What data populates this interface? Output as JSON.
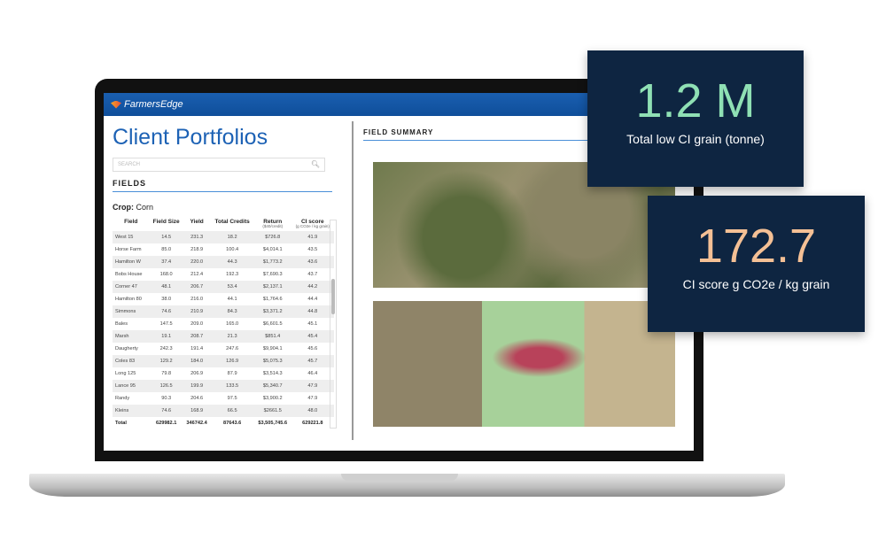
{
  "app": {
    "brand": "FarmersEdge",
    "title": "Client Portfolios",
    "search_placeholder": "SEARCH"
  },
  "fields": {
    "heading": "FIELDS",
    "crop_label": "Crop:",
    "crop_value": "Corn",
    "columns": [
      {
        "label": "Field",
        "sub": ""
      },
      {
        "label": "Field Size",
        "sub": ""
      },
      {
        "label": "Yield",
        "sub": ""
      },
      {
        "label": "Total Credits",
        "sub": ""
      },
      {
        "label": "Return",
        "sub": "($40/credit)"
      },
      {
        "label": "CI score",
        "sub": "(g CO2e / kg grain)"
      }
    ],
    "rows": [
      [
        "West 15",
        "14.5",
        "231.3",
        "18.2",
        "$726.8",
        "41.9"
      ],
      [
        "Horse Farm",
        "85.0",
        "218.9",
        "100.4",
        "$4,014.1",
        "43.5"
      ],
      [
        "Hamilton W",
        "37.4",
        "220.0",
        "44.3",
        "$1,773.2",
        "43.6"
      ],
      [
        "Bobs House",
        "168.0",
        "212.4",
        "192.3",
        "$7,690.3",
        "43.7"
      ],
      [
        "Corner 47",
        "48.1",
        "206.7",
        "53.4",
        "$2,137.1",
        "44.2"
      ],
      [
        "Hamilton 80",
        "38.0",
        "216.0",
        "44.1",
        "$1,764.6",
        "44.4"
      ],
      [
        "Simmons",
        "74.6",
        "210.9",
        "84.3",
        "$3,371.2",
        "44.8"
      ],
      [
        "Bales",
        "147.5",
        "209.0",
        "165.0",
        "$6,601.5",
        "45.1"
      ],
      [
        "Marsh",
        "19.1",
        "208.7",
        "21.3",
        "$851.4",
        "45.4"
      ],
      [
        "Daugherty",
        "242.3",
        "191.4",
        "247.6",
        "$9,904.1",
        "45.6"
      ],
      [
        "Coles 83",
        "129.2",
        "184.0",
        "126.9",
        "$5,075.3",
        "45.7"
      ],
      [
        "Long 125",
        "79.8",
        "206.9",
        "87.9",
        "$3,514.3",
        "46.4"
      ],
      [
        "Lance 95",
        "126.5",
        "199.9",
        "133.5",
        "$5,340.7",
        "47.9"
      ],
      [
        "Randy",
        "90.3",
        "204.6",
        "97.5",
        "$3,900.2",
        "47.9"
      ],
      [
        "Kleins",
        "74.6",
        "168.9",
        "66.5",
        "$2661.5",
        "48.0"
      ]
    ],
    "total": [
      "Total",
      "629982.1",
      "346742.4",
      "87643.6",
      "$3,505,745.6",
      "629221.8"
    ]
  },
  "summary": {
    "heading": "FIELD SUMMARY"
  },
  "cards": [
    {
      "value": "1.2 M",
      "label": "Total low CI grain (tonne)",
      "color": "#8fe0b4"
    },
    {
      "value": "172.7",
      "label": "CI score g CO2e / kg grain",
      "color": "#f4c095"
    }
  ]
}
